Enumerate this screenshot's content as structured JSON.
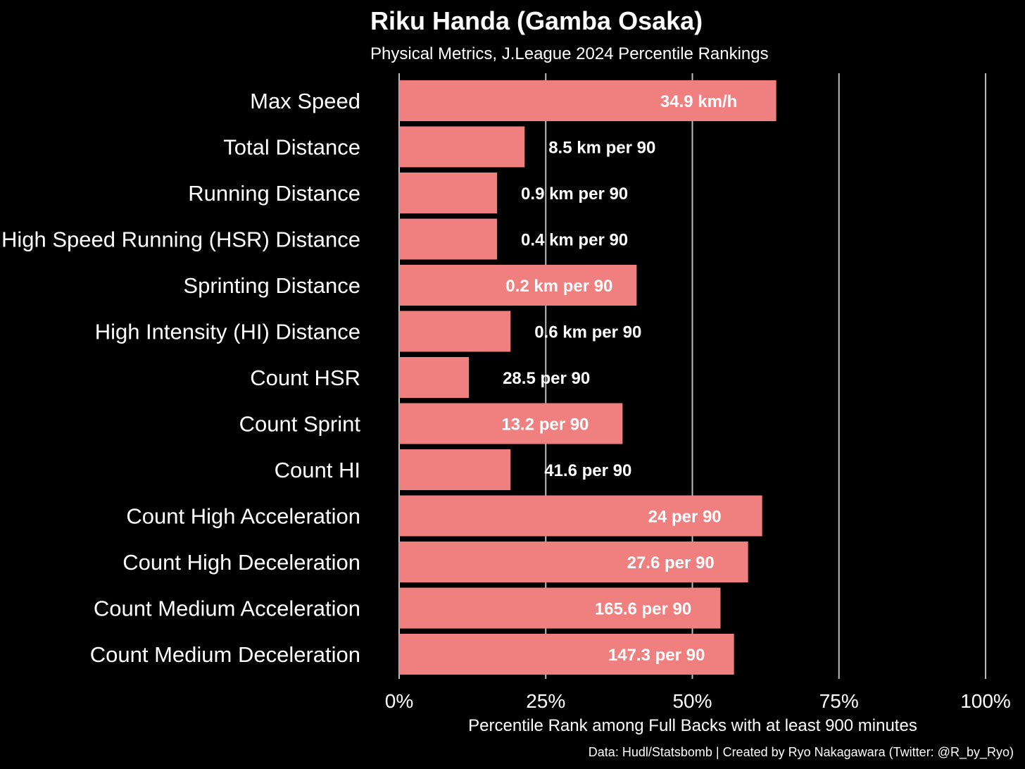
{
  "chart_data": {
    "type": "bar",
    "orientation": "horizontal",
    "title": "Riku Handa (Gamba Osaka)",
    "subtitle": "Physical Metrics, J.League 2024 Percentile Rankings",
    "xlabel": "Percentile Rank among Full Backs with at least 900 minutes",
    "caption": "Data: Hudl/Statsbomb | Created by Ryo Nakagawara (Twitter: @R_by_Ryo)",
    "xlim": [
      0,
      100
    ],
    "x_ticks": [
      0,
      25,
      50,
      75,
      100
    ],
    "x_tick_labels": [
      "0%",
      "25%",
      "50%",
      "75%",
      "100%"
    ],
    "grid": "vertical major lines",
    "bar_color": "#F08080",
    "background_color": "#000000",
    "text_color": "#FFFFFF",
    "grid_color": "#BEBEBE",
    "categories": [
      "Max Speed",
      "Total Distance",
      "Running Distance",
      "High Speed Running (HSR) Distance",
      "Sprinting Distance",
      "High Intensity (HI) Distance",
      "Count HSR",
      "Count Sprint",
      "Count HI",
      "Count High Acceleration",
      "Count High Deceleration",
      "Count Medium Acceleration",
      "Count Medium Deceleration"
    ],
    "values": [
      64.3,
      21.4,
      16.7,
      16.7,
      40.5,
      19.0,
      11.9,
      38.1,
      19.0,
      61.9,
      59.5,
      54.8,
      57.1
    ],
    "bar_labels": [
      "34.9 km/h",
      "8.5 km per 90",
      "0.9 km per 90",
      "0.4 km per 90",
      "0.2 km per 90",
      "0.6 km per 90",
      "28.5 per 90",
      "13.2 per 90",
      "41.6 per 90",
      "24 per 90",
      "27.6 per 90",
      "165.6 per 90",
      "147.3 per 90"
    ]
  }
}
